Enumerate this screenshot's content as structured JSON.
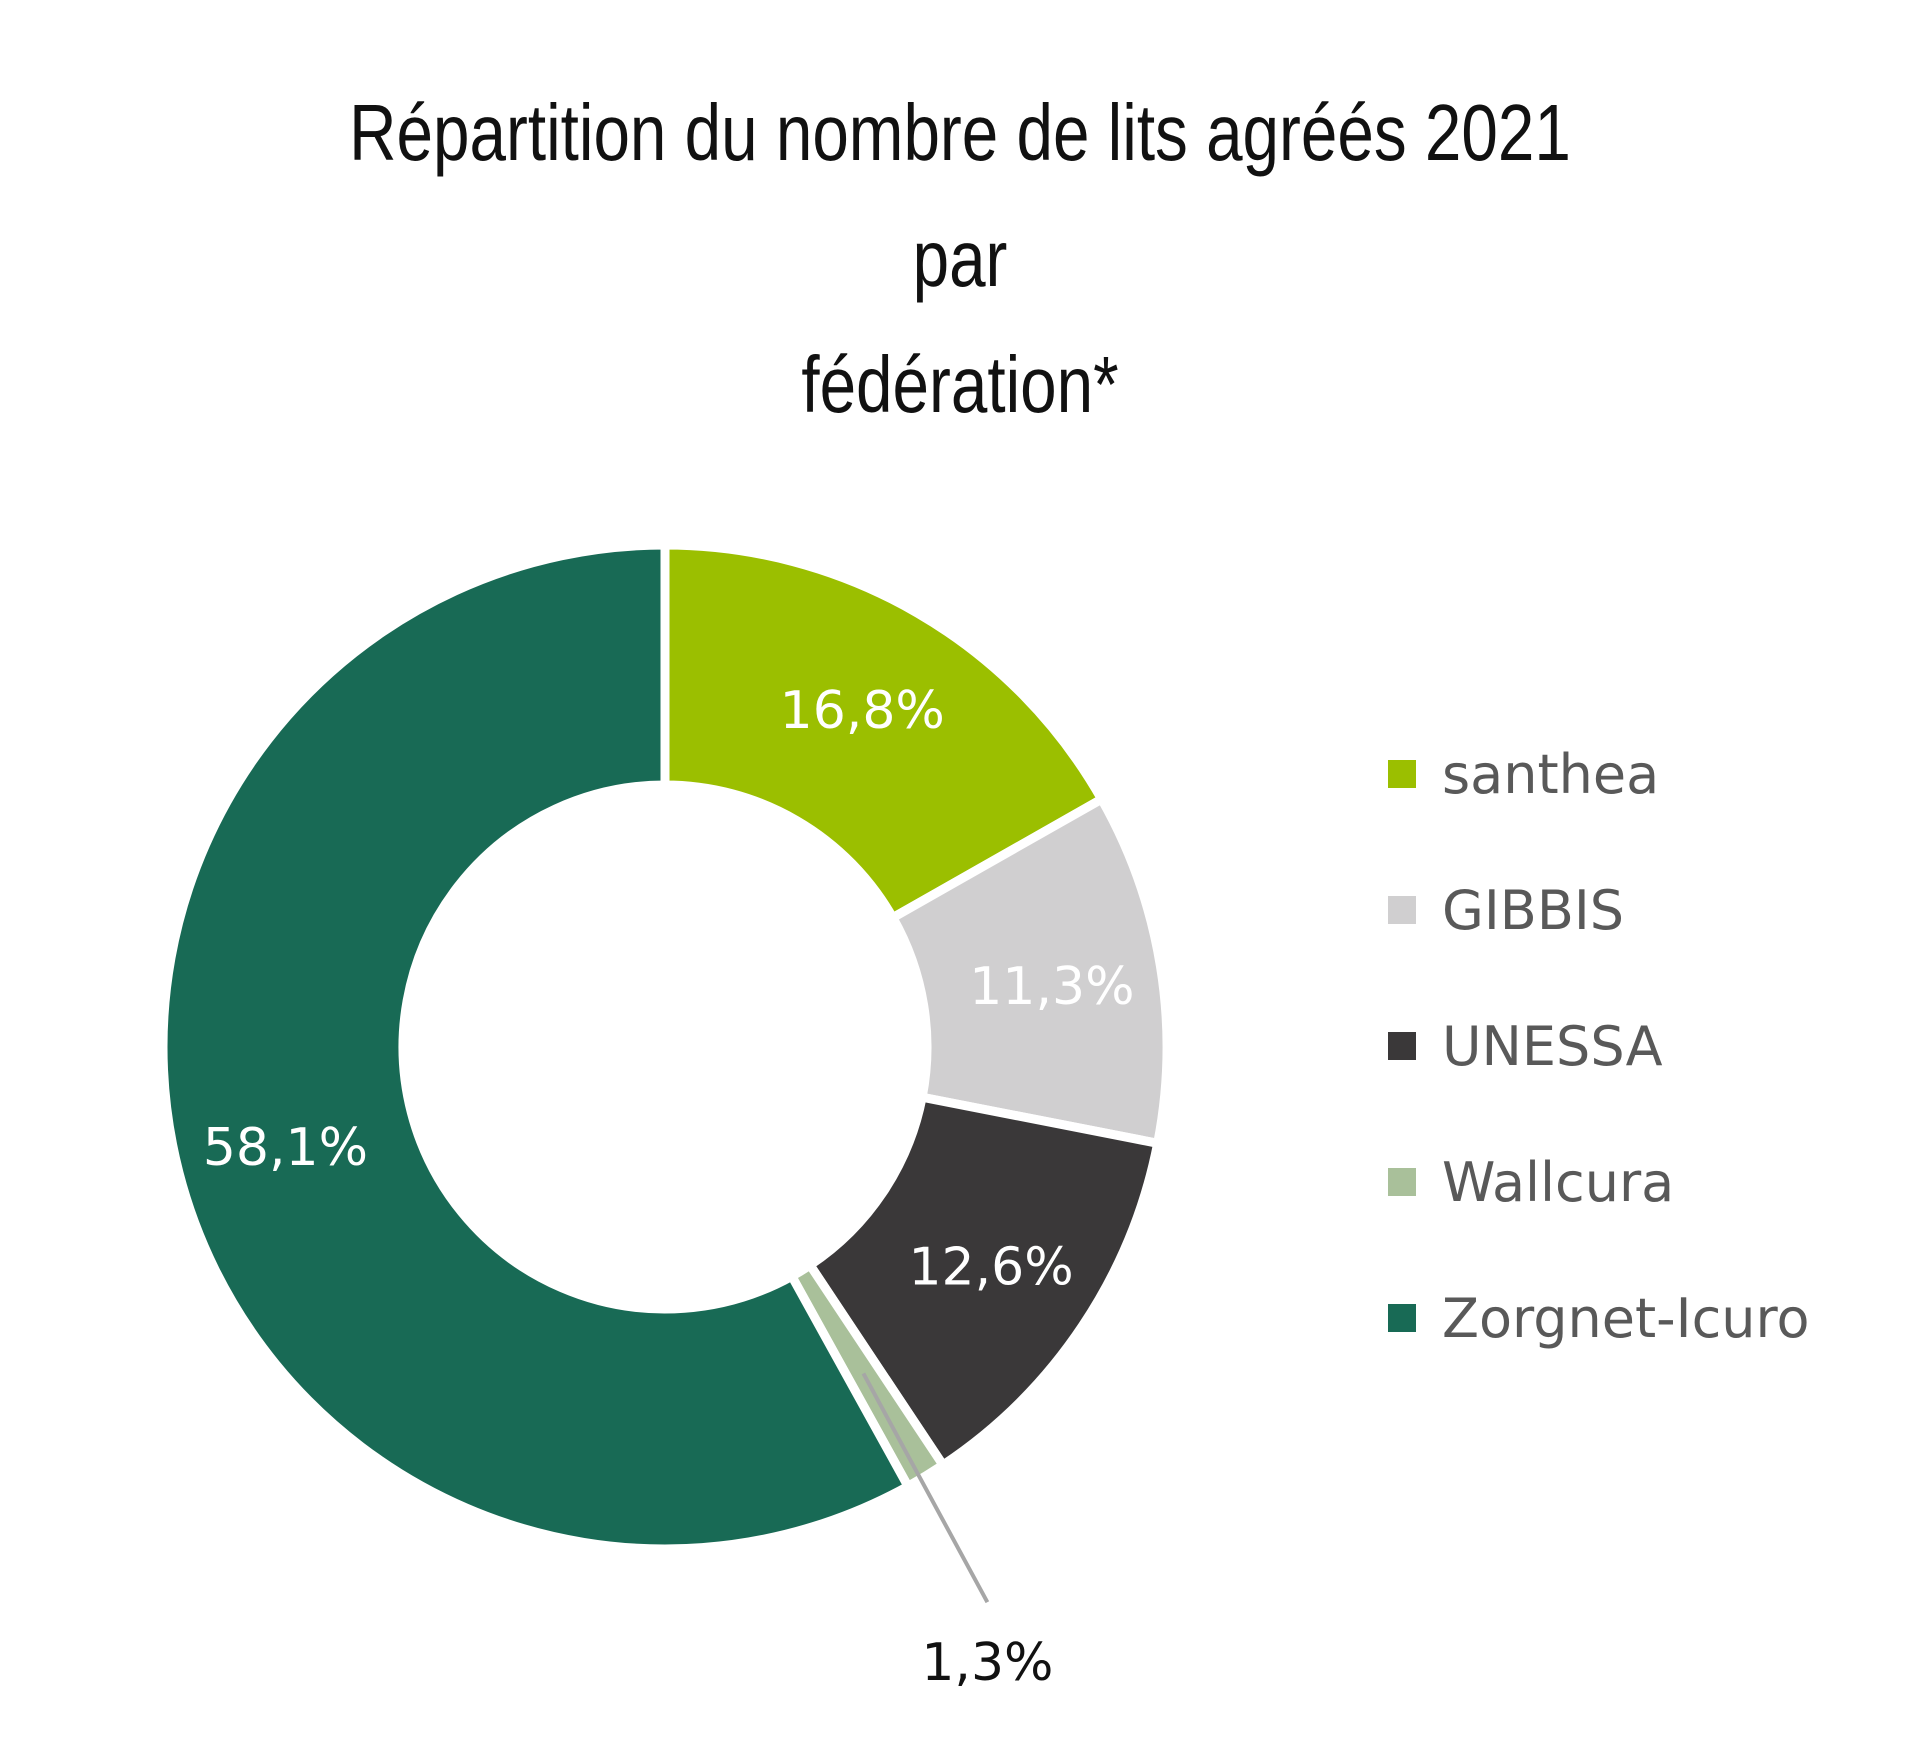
{
  "chart_data": {
    "type": "pie",
    "title_lines": [
      "Répartition du nombre de lits agréés 2021 par",
      "fédération*"
    ],
    "series": [
      {
        "name": "santhea",
        "value": 16.8,
        "label": "16,8%",
        "color": "#9bbf00"
      },
      {
        "name": "GIBBIS",
        "value": 11.3,
        "label": "11,3%",
        "color": "#d0cfd0"
      },
      {
        "name": "UNESSA",
        "value": 12.6,
        "label": "12,6%",
        "color": "#3a3839"
      },
      {
        "name": "Wallcura",
        "value": 1.3,
        "label": "1,3%",
        "color": "#a9c09a"
      },
      {
        "name": "Zorgnet-Icuro",
        "value": 58.1,
        "label": "58,1%",
        "color": "#186a55"
      }
    ],
    "donut": true,
    "legend_position": "right"
  }
}
